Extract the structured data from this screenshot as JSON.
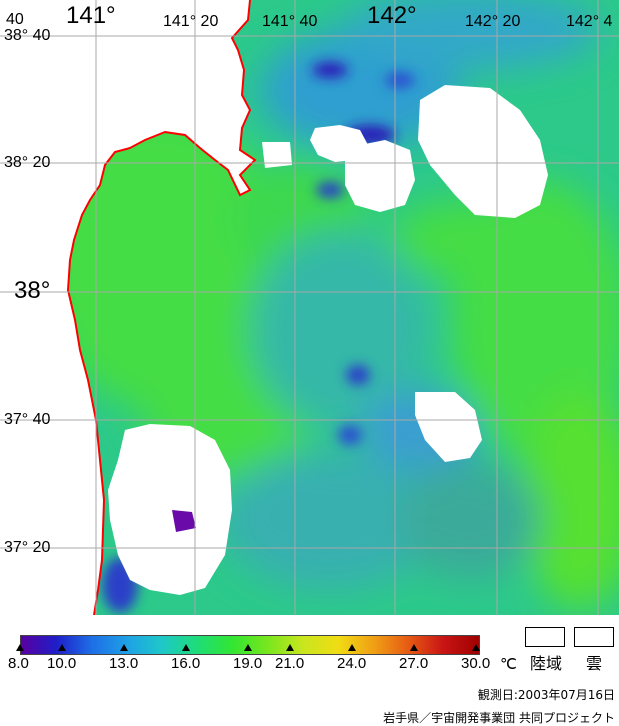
{
  "map": {
    "lon_labels": [
      "40",
      "141°",
      "141° 20",
      "141° 40",
      "142°",
      "142° 20",
      "142° 4"
    ],
    "lat_labels": [
      "38° 40",
      "38° 20",
      "38°",
      "37° 40",
      "37° 20"
    ],
    "colors": {
      "land": "#ffffff",
      "cloud": "#ffffff",
      "coastline": "#ff0000",
      "grid": "#a8a8a8",
      "sea_base": "#2cc98a",
      "warm_green": "#44dd44",
      "cool_blue": "#3a9ed0",
      "cold_indigo": "#2b1fb8",
      "purple": "#6a0aa8"
    }
  },
  "legend": {
    "ticks": [
      "8.0",
      "10.0",
      "13.0",
      "16.0",
      "19.0",
      "21.0",
      "24.0",
      "27.0",
      "30.0"
    ],
    "unit": "℃",
    "land_label": "陸域",
    "cloud_label": "雲",
    "stops": [
      "#5a00a0",
      "#1e1ec8",
      "#1e6ee6",
      "#1ea0e6",
      "#1ec8c8",
      "#1edc78",
      "#32e632",
      "#78e61e",
      "#c8e61e",
      "#f0dc14",
      "#f0a014",
      "#e65a14",
      "#c81414",
      "#a00000"
    ]
  },
  "footer": {
    "date": "観測日:2003年07月16日",
    "credit": "岩手県／宇宙開発事業団 共同プロジェクト"
  }
}
